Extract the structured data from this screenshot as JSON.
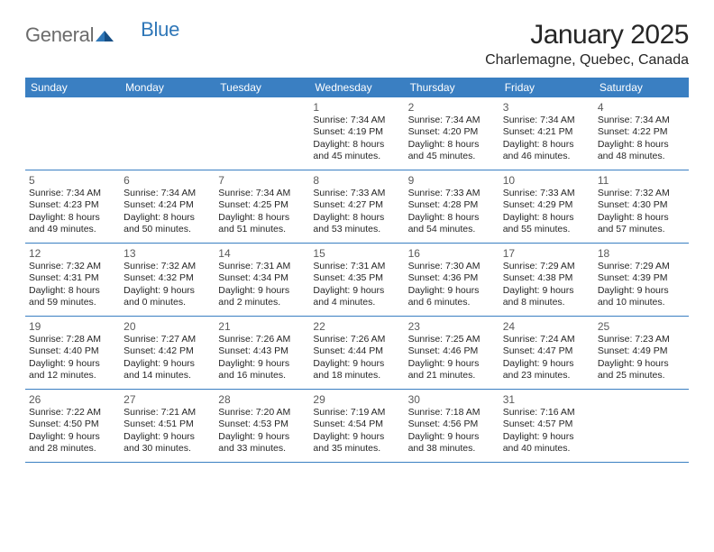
{
  "brand": {
    "part1": "General",
    "part2": "Blue"
  },
  "title": "January 2025",
  "location": "Charlemagne, Quebec, Canada",
  "colors": {
    "header_bar": "#3a7fc2",
    "header_text": "#ffffff",
    "rule": "#3a7fc2",
    "body_text": "#262626",
    "daynum_text": "#5a5a5a",
    "logo_gray": "#6b6b6b",
    "logo_blue": "#2f77b8",
    "background": "#ffffff"
  },
  "dayNames": [
    "Sunday",
    "Monday",
    "Tuesday",
    "Wednesday",
    "Thursday",
    "Friday",
    "Saturday"
  ],
  "weeks": [
    [
      {
        "n": "",
        "sr": "",
        "ss": "",
        "d1": "",
        "d2": ""
      },
      {
        "n": "",
        "sr": "",
        "ss": "",
        "d1": "",
        "d2": ""
      },
      {
        "n": "",
        "sr": "",
        "ss": "",
        "d1": "",
        "d2": ""
      },
      {
        "n": "1",
        "sr": "Sunrise: 7:34 AM",
        "ss": "Sunset: 4:19 PM",
        "d1": "Daylight: 8 hours",
        "d2": "and 45 minutes."
      },
      {
        "n": "2",
        "sr": "Sunrise: 7:34 AM",
        "ss": "Sunset: 4:20 PM",
        "d1": "Daylight: 8 hours",
        "d2": "and 45 minutes."
      },
      {
        "n": "3",
        "sr": "Sunrise: 7:34 AM",
        "ss": "Sunset: 4:21 PM",
        "d1": "Daylight: 8 hours",
        "d2": "and 46 minutes."
      },
      {
        "n": "4",
        "sr": "Sunrise: 7:34 AM",
        "ss": "Sunset: 4:22 PM",
        "d1": "Daylight: 8 hours",
        "d2": "and 48 minutes."
      }
    ],
    [
      {
        "n": "5",
        "sr": "Sunrise: 7:34 AM",
        "ss": "Sunset: 4:23 PM",
        "d1": "Daylight: 8 hours",
        "d2": "and 49 minutes."
      },
      {
        "n": "6",
        "sr": "Sunrise: 7:34 AM",
        "ss": "Sunset: 4:24 PM",
        "d1": "Daylight: 8 hours",
        "d2": "and 50 minutes."
      },
      {
        "n": "7",
        "sr": "Sunrise: 7:34 AM",
        "ss": "Sunset: 4:25 PM",
        "d1": "Daylight: 8 hours",
        "d2": "and 51 minutes."
      },
      {
        "n": "8",
        "sr": "Sunrise: 7:33 AM",
        "ss": "Sunset: 4:27 PM",
        "d1": "Daylight: 8 hours",
        "d2": "and 53 minutes."
      },
      {
        "n": "9",
        "sr": "Sunrise: 7:33 AM",
        "ss": "Sunset: 4:28 PM",
        "d1": "Daylight: 8 hours",
        "d2": "and 54 minutes."
      },
      {
        "n": "10",
        "sr": "Sunrise: 7:33 AM",
        "ss": "Sunset: 4:29 PM",
        "d1": "Daylight: 8 hours",
        "d2": "and 55 minutes."
      },
      {
        "n": "11",
        "sr": "Sunrise: 7:32 AM",
        "ss": "Sunset: 4:30 PM",
        "d1": "Daylight: 8 hours",
        "d2": "and 57 minutes."
      }
    ],
    [
      {
        "n": "12",
        "sr": "Sunrise: 7:32 AM",
        "ss": "Sunset: 4:31 PM",
        "d1": "Daylight: 8 hours",
        "d2": "and 59 minutes."
      },
      {
        "n": "13",
        "sr": "Sunrise: 7:32 AM",
        "ss": "Sunset: 4:32 PM",
        "d1": "Daylight: 9 hours",
        "d2": "and 0 minutes."
      },
      {
        "n": "14",
        "sr": "Sunrise: 7:31 AM",
        "ss": "Sunset: 4:34 PM",
        "d1": "Daylight: 9 hours",
        "d2": "and 2 minutes."
      },
      {
        "n": "15",
        "sr": "Sunrise: 7:31 AM",
        "ss": "Sunset: 4:35 PM",
        "d1": "Daylight: 9 hours",
        "d2": "and 4 minutes."
      },
      {
        "n": "16",
        "sr": "Sunrise: 7:30 AM",
        "ss": "Sunset: 4:36 PM",
        "d1": "Daylight: 9 hours",
        "d2": "and 6 minutes."
      },
      {
        "n": "17",
        "sr": "Sunrise: 7:29 AM",
        "ss": "Sunset: 4:38 PM",
        "d1": "Daylight: 9 hours",
        "d2": "and 8 minutes."
      },
      {
        "n": "18",
        "sr": "Sunrise: 7:29 AM",
        "ss": "Sunset: 4:39 PM",
        "d1": "Daylight: 9 hours",
        "d2": "and 10 minutes."
      }
    ],
    [
      {
        "n": "19",
        "sr": "Sunrise: 7:28 AM",
        "ss": "Sunset: 4:40 PM",
        "d1": "Daylight: 9 hours",
        "d2": "and 12 minutes."
      },
      {
        "n": "20",
        "sr": "Sunrise: 7:27 AM",
        "ss": "Sunset: 4:42 PM",
        "d1": "Daylight: 9 hours",
        "d2": "and 14 minutes."
      },
      {
        "n": "21",
        "sr": "Sunrise: 7:26 AM",
        "ss": "Sunset: 4:43 PM",
        "d1": "Daylight: 9 hours",
        "d2": "and 16 minutes."
      },
      {
        "n": "22",
        "sr": "Sunrise: 7:26 AM",
        "ss": "Sunset: 4:44 PM",
        "d1": "Daylight: 9 hours",
        "d2": "and 18 minutes."
      },
      {
        "n": "23",
        "sr": "Sunrise: 7:25 AM",
        "ss": "Sunset: 4:46 PM",
        "d1": "Daylight: 9 hours",
        "d2": "and 21 minutes."
      },
      {
        "n": "24",
        "sr": "Sunrise: 7:24 AM",
        "ss": "Sunset: 4:47 PM",
        "d1": "Daylight: 9 hours",
        "d2": "and 23 minutes."
      },
      {
        "n": "25",
        "sr": "Sunrise: 7:23 AM",
        "ss": "Sunset: 4:49 PM",
        "d1": "Daylight: 9 hours",
        "d2": "and 25 minutes."
      }
    ],
    [
      {
        "n": "26",
        "sr": "Sunrise: 7:22 AM",
        "ss": "Sunset: 4:50 PM",
        "d1": "Daylight: 9 hours",
        "d2": "and 28 minutes."
      },
      {
        "n": "27",
        "sr": "Sunrise: 7:21 AM",
        "ss": "Sunset: 4:51 PM",
        "d1": "Daylight: 9 hours",
        "d2": "and 30 minutes."
      },
      {
        "n": "28",
        "sr": "Sunrise: 7:20 AM",
        "ss": "Sunset: 4:53 PM",
        "d1": "Daylight: 9 hours",
        "d2": "and 33 minutes."
      },
      {
        "n": "29",
        "sr": "Sunrise: 7:19 AM",
        "ss": "Sunset: 4:54 PM",
        "d1": "Daylight: 9 hours",
        "d2": "and 35 minutes."
      },
      {
        "n": "30",
        "sr": "Sunrise: 7:18 AM",
        "ss": "Sunset: 4:56 PM",
        "d1": "Daylight: 9 hours",
        "d2": "and 38 minutes."
      },
      {
        "n": "31",
        "sr": "Sunrise: 7:16 AM",
        "ss": "Sunset: 4:57 PM",
        "d1": "Daylight: 9 hours",
        "d2": "and 40 minutes."
      },
      {
        "n": "",
        "sr": "",
        "ss": "",
        "d1": "",
        "d2": ""
      }
    ]
  ]
}
